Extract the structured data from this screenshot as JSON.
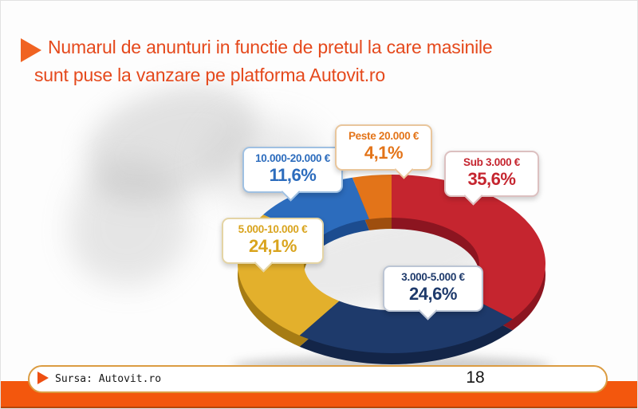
{
  "slide": {
    "title_lines": [
      "Numarul de anunturi in functie de pretul la care masinile",
      "sunt puse la vanzare pe platforma Autovit.ro"
    ],
    "page_number": "18",
    "source_text": "Sursa: Autovit.ro"
  },
  "colors": {
    "title_text": "#e5491c",
    "accent_band_orange": "#f3570d",
    "pill_border_gold": "#db9c42"
  },
  "icons": {
    "title_bullet": "right-pointing-triangle-icon",
    "footer_bullet": "right-pointing-triangle-icon"
  },
  "chart_data": {
    "type": "pie",
    "donut": true,
    "title": "Numarul de anunturi in functie de pretul la care masinile sunt puse la vanzare pe platforma Autovit.ro",
    "source": "Sursa: Autovit.ro",
    "start_angle_deg": 0,
    "direction": "clockwise",
    "categories": [
      "Sub 3.000 €",
      "3.000-5.000 €",
      "5.000-10.000 €",
      "10.000-20.000 €",
      "Peste 20.000 €"
    ],
    "values": [
      35.6,
      24.6,
      24.1,
      11.6,
      4.1
    ],
    "segments": [
      {
        "label": "Sub 3.000 €",
        "percent_label": "35,6%",
        "value": 35.6,
        "color": "#c5252f",
        "dark_color": "#8c1520"
      },
      {
        "label": "3.000-5.000 €",
        "percent_label": "24,6%",
        "value": 24.6,
        "color": "#1e3a6b",
        "dark_color": "#132548"
      },
      {
        "label": "5.000-10.000 €",
        "percent_label": "24,1%",
        "value": 24.1,
        "color": "#e3b02c",
        "dark_color": "#a67c14"
      },
      {
        "label": "10.000-20.000 €",
        "percent_label": "11,6%",
        "value": 11.6,
        "color": "#2c6cbd",
        "dark_color": "#1c4c8f"
      },
      {
        "label": "Peste 20.000 €",
        "percent_label": "4,1%",
        "value": 4.1,
        "color": "#e37419",
        "dark_color": "#9e4e0e"
      }
    ]
  }
}
